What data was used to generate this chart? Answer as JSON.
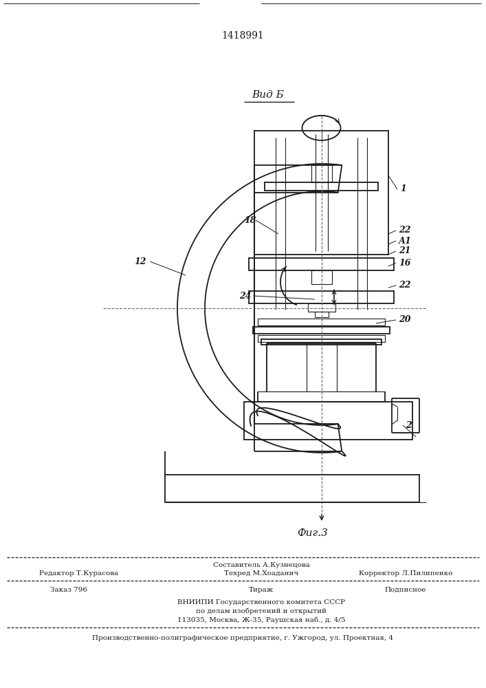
{
  "patent_number": "1418991",
  "view_label": "Вид Б",
  "fig_label": "Фиг.3",
  "bg_color": "#ffffff",
  "line_color": "#1a1a1a",
  "footer": {
    "line1_center_top": "Составитель А.Кузнецова",
    "line1_left": "Редактор Т.Курасова",
    "line1_center": "Техред М.Хоаданич",
    "line1_right": "Корректор Л.Пилипенко",
    "line2_left": "Заказ 796",
    "line2_center": "Тираж",
    "line2_right": "Подписное",
    "line3": "ВНИИПИ Государственного комитета СССР",
    "line4": "по делам изобретений и открытий",
    "line5": "113035, Москва, Ж-35, Раушская наб., д. 4/5",
    "line6": "Производственно-полиграфическое предприятие, г. Ужгород, ул. Проектная, 4"
  }
}
